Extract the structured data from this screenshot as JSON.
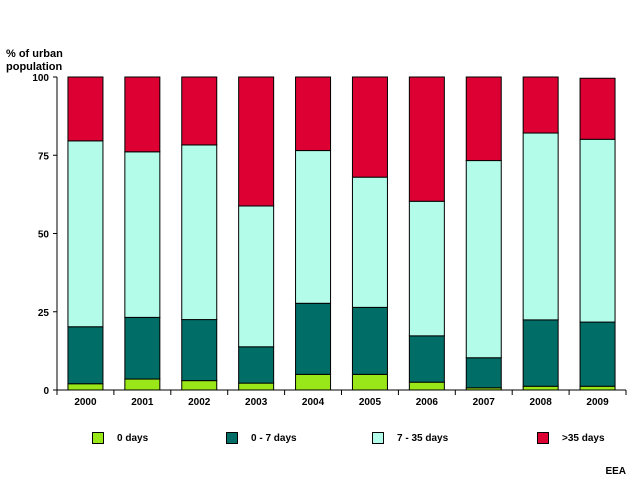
{
  "chart_data": {
    "type": "bar",
    "stacked": true,
    "ylabel": "% of urban population",
    "xlabel": "",
    "ylim": [
      0,
      100
    ],
    "yticks": [
      0,
      25,
      50,
      75,
      100
    ],
    "categories": [
      "2000",
      "2001",
      "2002",
      "2003",
      "2004",
      "2005",
      "2006",
      "2007",
      "2008",
      "2009"
    ],
    "series": [
      {
        "name": "0 days",
        "color": "#99e619",
        "values": [
          2.0,
          3.5,
          3.0,
          2.2,
          5.0,
          5.0,
          2.5,
          0.7,
          1.2,
          1.2
        ]
      },
      {
        "name": "0 - 7 days",
        "color": "#006d66",
        "values": [
          18.2,
          19.7,
          19.5,
          11.6,
          22.7,
          21.4,
          14.8,
          9.6,
          21.2,
          20.5
        ]
      },
      {
        "name": "7 - 35 days",
        "color": "#b3fce9",
        "values": [
          59.4,
          52.9,
          55.8,
          45.0,
          48.8,
          41.6,
          43.0,
          63.0,
          59.7,
          58.4
        ]
      },
      {
        "name": ">35 days",
        "color": "#dd0033",
        "values": [
          20.4,
          23.9,
          21.7,
          41.2,
          23.5,
          32.0,
          39.7,
          26.7,
          17.9,
          19.5
        ]
      }
    ],
    "legend_position": "bottom",
    "grid": false
  },
  "source_label": "EEA"
}
